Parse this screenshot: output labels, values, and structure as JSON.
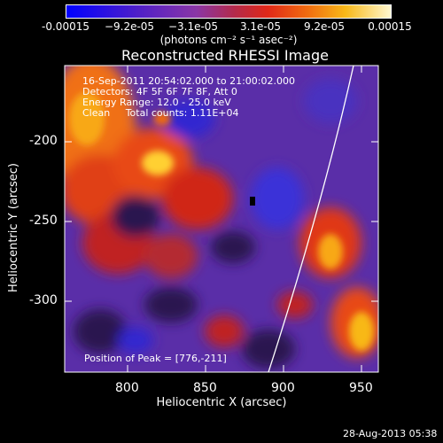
{
  "colorbar": {
    "tick_labels": [
      "-0.00015",
      "−9.2e-05",
      "−3.1e-05",
      "3.1e-05",
      "9.2e-05",
      "0.00015"
    ],
    "units": "(photons cm⁻² s⁻¹ asec⁻²)"
  },
  "title": "Reconstructed RHESSI Image",
  "info": {
    "time": "16-Sep-2011 20:54:02.000 to 21:00:02.000",
    "detectors": "Detectors: 4F 5F 6F 7F 8F, Att 0",
    "energy": "Energy Range: 12.0 - 25.0 keV",
    "clean": "Clean     Total counts: 1.11E+04",
    "peak": "Position of Peak = [776,-211]"
  },
  "axes": {
    "x_label": "Heliocentric X (arcsec)",
    "y_label": "Heliocentric Y (arcsec)",
    "x_ticks": [
      "800",
      "850",
      "900",
      "950"
    ],
    "y_ticks": [
      "-200",
      "-250",
      "-300"
    ]
  },
  "timestamp": "28-Aug-2013 05:38"
}
